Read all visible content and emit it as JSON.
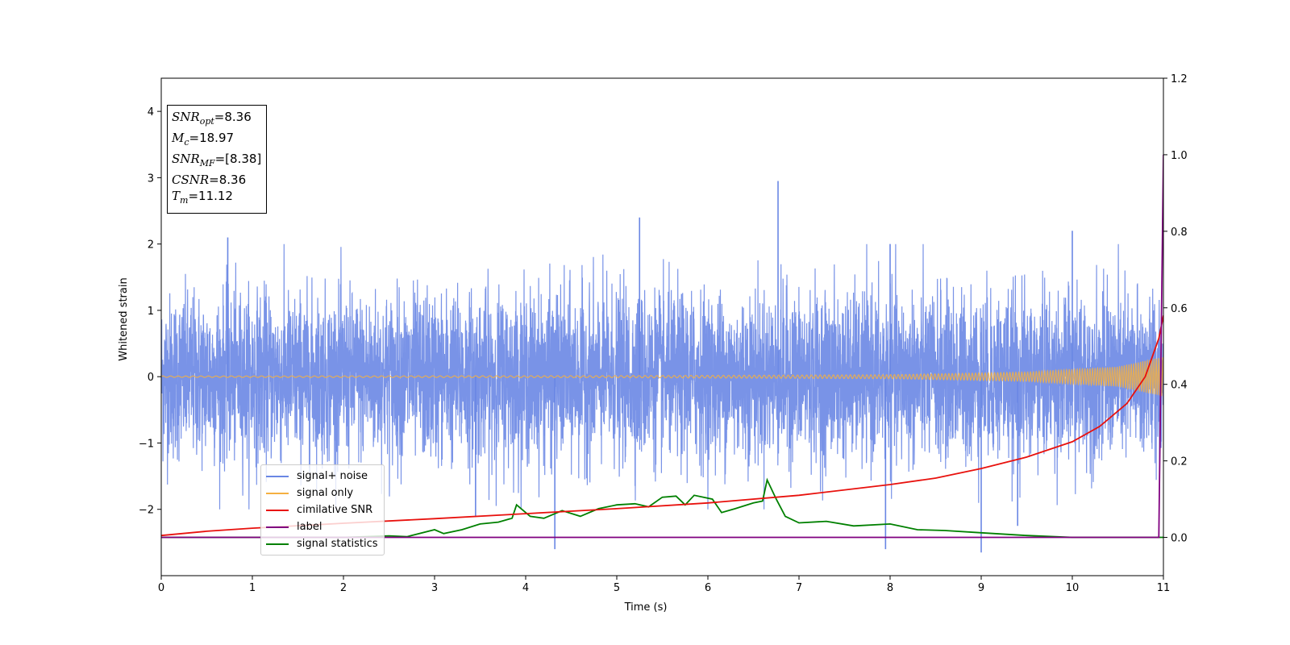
{
  "chart_data": {
    "type": "line",
    "xlabel": "Time (s)",
    "ylabel": "Whitened strain",
    "xlim": [
      0,
      11
    ],
    "ylim": [
      -3.0,
      4.5
    ],
    "ylim_right": [
      -0.1,
      1.2
    ],
    "xticks": [
      "0",
      "1",
      "2",
      "3",
      "4",
      "5",
      "6",
      "7",
      "8",
      "9",
      "10",
      "11"
    ],
    "yticks_left": [
      "−2",
      "−1",
      "0",
      "1",
      "2",
      "3",
      "4"
    ],
    "yticks_right": [
      "0.0",
      "0.2",
      "0.4",
      "0.6",
      "0.8",
      "1.0",
      "1.2"
    ],
    "grid": false,
    "legend_placement": "lower-left",
    "info": {
      "snr_opt_label": "SNR",
      "snr_opt_sub": "opt",
      "snr_opt_value": "=8.36",
      "mc_label": "M",
      "mc_sub": "c",
      "mc_value": "=18.97",
      "snr_mf_label": "SNR",
      "snr_mf_sub": "MF",
      "snr_mf_value": "=[8.38]",
      "csnr_label": "CSNR",
      "csnr_value": "=8.36",
      "tm_label": "T",
      "tm_sub": "m",
      "tm_value": "=11.12"
    },
    "series": [
      {
        "name": "signal+ noise",
        "color": "#6a87e4",
        "axis": "left",
        "description": "dense noisy whitened strain, roughly symmetric spread about 0 with peaks near ±2",
        "spikes": [
          [
            0.73,
            2.1
          ],
          [
            5.25,
            2.4
          ],
          [
            6.77,
            2.95
          ],
          [
            8.0,
            2.0
          ],
          [
            10.0,
            2.2
          ],
          [
            4.32,
            -2.6
          ],
          [
            7.95,
            -2.6
          ],
          [
            9.0,
            -2.65
          ],
          [
            9.4,
            -2.25
          ],
          [
            3.45,
            -2.1
          ]
        ]
      },
      {
        "name": "signal only",
        "color": "#f5b041",
        "axis": "left",
        "description": "chirp signal with amplitude growing toward merger",
        "envelope": [
          [
            0,
            0.01
          ],
          [
            5,
            0.015
          ],
          [
            8,
            0.03
          ],
          [
            9.5,
            0.07
          ],
          [
            10.5,
            0.15
          ],
          [
            11,
            0.3
          ]
        ]
      },
      {
        "name": "cimilative SNR",
        "color": "#e8110d",
        "axis": "right",
        "points": [
          [
            0,
            0.005
          ],
          [
            0.5,
            0.016
          ],
          [
            1,
            0.024
          ],
          [
            2,
            0.037
          ],
          [
            3,
            0.049
          ],
          [
            4,
            0.062
          ],
          [
            5,
            0.075
          ],
          [
            6,
            0.09
          ],
          [
            7,
            0.11
          ],
          [
            8,
            0.138
          ],
          [
            8.5,
            0.155
          ],
          [
            9,
            0.18
          ],
          [
            9.5,
            0.21
          ],
          [
            10,
            0.25
          ],
          [
            10.3,
            0.29
          ],
          [
            10.6,
            0.35
          ],
          [
            10.8,
            0.42
          ],
          [
            10.95,
            0.52
          ],
          [
            11,
            0.58
          ]
        ]
      },
      {
        "name": "label",
        "color": "#800080",
        "axis": "right",
        "points": [
          [
            0,
            0.0
          ],
          [
            10.95,
            0.0
          ],
          [
            11,
            1.0
          ]
        ]
      },
      {
        "name": "signal statistics",
        "color": "#008000",
        "axis": "right",
        "points": [
          [
            0,
            0.0
          ],
          [
            2.0,
            0.0
          ],
          [
            2.5,
            0.004
          ],
          [
            2.7,
            0.002
          ],
          [
            3.0,
            0.02
          ],
          [
            3.1,
            0.01
          ],
          [
            3.3,
            0.02
          ],
          [
            3.5,
            0.035
          ],
          [
            3.7,
            0.04
          ],
          [
            3.85,
            0.05
          ],
          [
            3.9,
            0.085
          ],
          [
            4.05,
            0.055
          ],
          [
            4.2,
            0.05
          ],
          [
            4.4,
            0.07
          ],
          [
            4.6,
            0.055
          ],
          [
            4.8,
            0.075
          ],
          [
            5.0,
            0.085
          ],
          [
            5.2,
            0.088
          ],
          [
            5.35,
            0.08
          ],
          [
            5.5,
            0.105
          ],
          [
            5.65,
            0.108
          ],
          [
            5.75,
            0.085
          ],
          [
            5.85,
            0.11
          ],
          [
            6.05,
            0.1
          ],
          [
            6.15,
            0.065
          ],
          [
            6.3,
            0.075
          ],
          [
            6.5,
            0.09
          ],
          [
            6.6,
            0.095
          ],
          [
            6.65,
            0.15
          ],
          [
            6.75,
            0.1
          ],
          [
            6.85,
            0.055
          ],
          [
            7.0,
            0.038
          ],
          [
            7.3,
            0.042
          ],
          [
            7.6,
            0.03
          ],
          [
            8.0,
            0.035
          ],
          [
            8.3,
            0.02
          ],
          [
            8.6,
            0.018
          ],
          [
            9.0,
            0.012
          ],
          [
            9.5,
            0.005
          ],
          [
            10.0,
            0.0
          ],
          [
            11,
            0.0
          ]
        ]
      }
    ]
  }
}
